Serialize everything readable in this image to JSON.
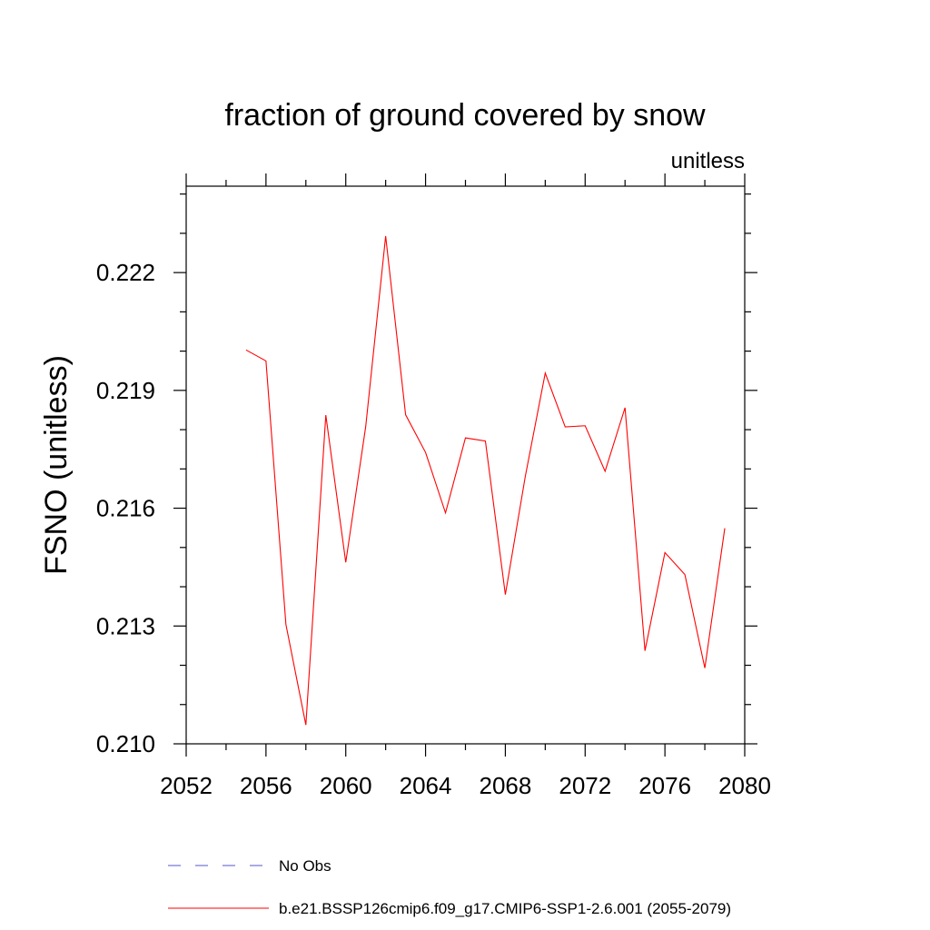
{
  "chart_data": {
    "type": "line",
    "title": "fraction of ground covered by snow",
    "subtitle": "unitless",
    "xlabel": "",
    "ylabel": "FSNO  (unitless)",
    "xlim": [
      2052,
      2080
    ],
    "ylim": [
      0.21,
      0.2242
    ],
    "x_ticks": [
      2052,
      2056,
      2060,
      2064,
      2068,
      2072,
      2076,
      2080
    ],
    "x_tick_labels": [
      "2052",
      "2056",
      "2060",
      "2064",
      "2068",
      "2072",
      "2076",
      "2080"
    ],
    "y_ticks": [
      0.21,
      0.213,
      0.216,
      0.219,
      0.222
    ],
    "y_tick_labels": [
      "0.210",
      "0.213",
      "0.216",
      "0.219",
      "0.222"
    ],
    "x_minor_step": 2,
    "y_minor_step": 0.001,
    "series": [
      {
        "name": "b.e21.BSSP126cmip6.f09_g17.CMIP6-SSP1-2.6.001 (2055-2079)",
        "color": "#ff0000",
        "style": "solid",
        "x": [
          2055,
          2056,
          2057,
          2058,
          2059,
          2060,
          2061,
          2062,
          2063,
          2064,
          2065,
          2066,
          2067,
          2068,
          2069,
          2070,
          2071,
          2072,
          2073,
          2074,
          2075,
          2076,
          2077,
          2078,
          2079
        ],
        "values": [
          0.22003,
          0.21975,
          0.21304,
          0.21048,
          0.21837,
          0.21462,
          0.21808,
          0.22293,
          0.21838,
          0.21742,
          0.21588,
          0.21779,
          0.21771,
          0.2138,
          0.21681,
          0.21944,
          0.21807,
          0.2181,
          0.21694,
          0.21856,
          0.21237,
          0.21487,
          0.21431,
          0.21193,
          0.21549
        ]
      }
    ],
    "legend": {
      "position": "bottom-left",
      "entries": [
        {
          "label": "No Obs",
          "color": "#5555cc",
          "style": "dashed"
        },
        {
          "label": "b.e21.BSSP126cmip6.f09_g17.CMIP6-SSP1-2.6.001 (2055-2079)",
          "color": "#ff0000",
          "style": "solid"
        }
      ]
    }
  }
}
